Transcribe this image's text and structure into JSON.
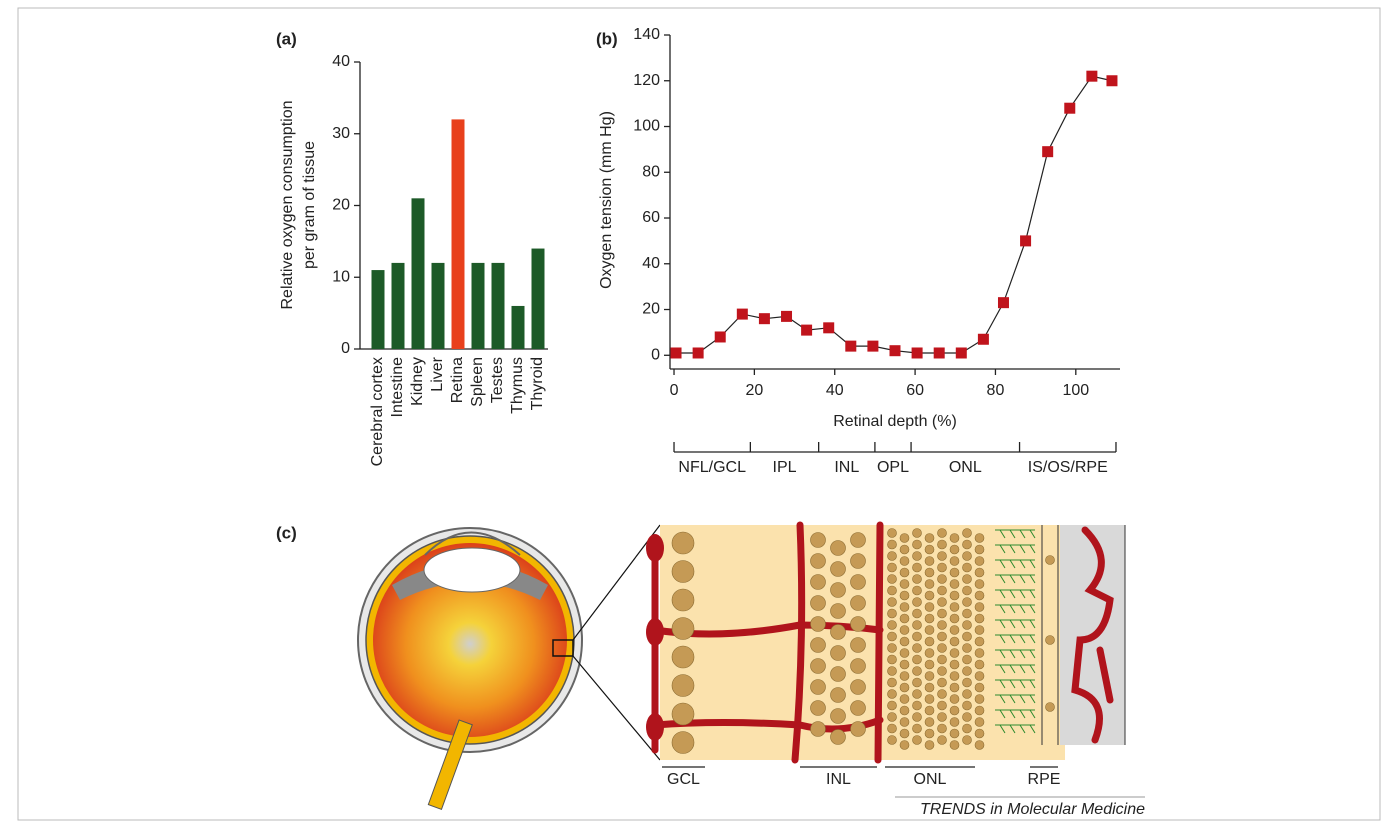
{
  "chart_data": [
    {
      "type": "bar",
      "panel": "(a)",
      "ylabel": [
        "Relative oxygen consumption",
        "per gram of tissue"
      ],
      "categories": [
        "Cerebral cortex",
        "Intestine",
        "Kidney",
        "Liver",
        "Retina",
        "Spleen",
        "Testes",
        "Thymus",
        "Thyroid"
      ],
      "values": [
        11,
        12,
        21,
        12,
        32,
        12,
        12,
        6,
        14
      ],
      "colors": [
        "#1d5a28",
        "#1d5a28",
        "#1d5a28",
        "#1d5a28",
        "#e8401c",
        "#1d5a28",
        "#1d5a28",
        "#1d5a28",
        "#1d5a28"
      ],
      "ylim": [
        0,
        40
      ],
      "yticks": [
        0,
        10,
        20,
        30,
        40
      ]
    },
    {
      "type": "line",
      "panel": "(b)",
      "xlabel": "Retinal depth (%)",
      "ylabel": "Oxygen tension (mm Hg)",
      "x": [
        0.5,
        6,
        11.5,
        17,
        22.5,
        28,
        33,
        38.5,
        44,
        49.5,
        55,
        60.5,
        66,
        71.5,
        77,
        82,
        87.5,
        93,
        98.5,
        104,
        109
      ],
      "series": [
        {
          "color": "#c0141c",
          "values": [
            1,
            1,
            8,
            18,
            16,
            17,
            11,
            12,
            4,
            4,
            2,
            1,
            1,
            1,
            7,
            23,
            50,
            89,
            108,
            122,
            120
          ]
        }
      ],
      "xlim": [
        -1,
        111
      ],
      "xticks": [
        0,
        20,
        40,
        60,
        80,
        100
      ],
      "ylim": [
        -6,
        140
      ],
      "yticks": [
        0,
        20,
        40,
        60,
        80,
        100,
        120,
        140
      ],
      "layers": [
        "NFL/GCL",
        "IPL",
        "INL",
        "OPL",
        "ONL",
        "IS/OS/RPE"
      ],
      "layer_edges": [
        0,
        19,
        36,
        50,
        59,
        86,
        110
      ]
    }
  ],
  "diagram": {
    "panel": "(c)",
    "labels": [
      "GCL",
      "INL",
      "ONL",
      "RPE"
    ],
    "credit": "TRENDS in Molecular Medicine"
  }
}
